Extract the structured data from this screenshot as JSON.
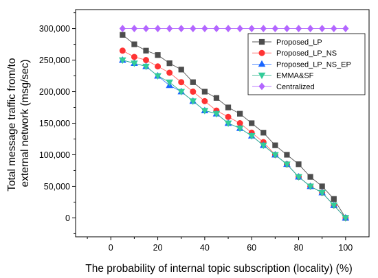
{
  "chart_data": {
    "type": "line",
    "title": "",
    "xlabel": "The probability of internal topic subscription (locality) (%)",
    "ylabel_lines": [
      "Total message traffic from/to",
      "external network (msg/sec)"
    ],
    "xlim": [
      -15,
      110
    ],
    "ylim": [
      -30000,
      330000
    ],
    "x_ticks": [
      0,
      20,
      40,
      60,
      80,
      100
    ],
    "x_tick_labels": [
      "0",
      "20",
      "40",
      "60",
      "80",
      "100"
    ],
    "y_ticks": [
      0,
      50000,
      100000,
      150000,
      200000,
      250000,
      300000
    ],
    "y_tick_labels": [
      "0",
      "50,000",
      "100,000",
      "150,000",
      "200,000",
      "250,000",
      "300,000"
    ],
    "grid": false,
    "legend_position": "top-right",
    "x": [
      5,
      10,
      15,
      20,
      25,
      30,
      35,
      40,
      45,
      50,
      55,
      60,
      65,
      70,
      75,
      80,
      85,
      90,
      95,
      100
    ],
    "series": [
      {
        "name": "Proposed_LP",
        "marker": "square",
        "color": "#4d4d4d",
        "line_color": "#555555",
        "values": [
          290000,
          275000,
          265000,
          258000,
          245000,
          235000,
          215000,
          200000,
          190000,
          175000,
          165000,
          150000,
          135000,
          115000,
          100000,
          85000,
          65000,
          50000,
          30000,
          0
        ]
      },
      {
        "name": "Proposed_LP_NS",
        "marker": "circle",
        "color": "#ff3333",
        "line_color": "#ff6666",
        "values": [
          265000,
          255000,
          250000,
          240000,
          230000,
          215000,
          200000,
          185000,
          170000,
          160000,
          150000,
          135000,
          120000,
          100000,
          85000,
          65000,
          50000,
          40000,
          20000,
          0
        ]
      },
      {
        "name": "Proposed_LP_NS_EP",
        "marker": "triangle-up",
        "color": "#1a66ff",
        "line_color": "#3377ff",
        "values": [
          250000,
          245000,
          240000,
          225000,
          210000,
          200000,
          185000,
          170000,
          165000,
          150000,
          142000,
          130000,
          115000,
          100000,
          85000,
          65000,
          50000,
          40000,
          20000,
          0
        ]
      },
      {
        "name": "EMMA&SF",
        "marker": "triangle-down",
        "color": "#33cc99",
        "line_color": "#33b38c",
        "values": [
          250000,
          245000,
          240000,
          225000,
          215000,
          200000,
          185000,
          170000,
          165000,
          150000,
          142000,
          130000,
          115000,
          100000,
          85000,
          65000,
          50000,
          40000,
          20000,
          0
        ]
      },
      {
        "name": "Centralized",
        "marker": "diamond",
        "color": "#b366ff",
        "line_color": "#b366ff",
        "values": [
          300000,
          300000,
          300000,
          300000,
          300000,
          300000,
          300000,
          300000,
          300000,
          300000,
          300000,
          300000,
          300000,
          300000,
          300000,
          300000,
          300000,
          300000,
          300000,
          300000
        ]
      }
    ]
  }
}
